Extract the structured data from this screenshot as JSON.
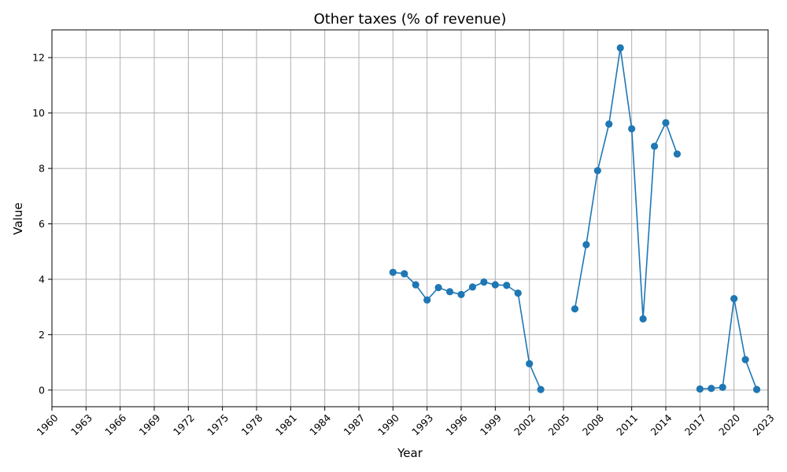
{
  "chart_data": {
    "type": "line",
    "title": "Other taxes (% of revenue)",
    "xlabel": "Year",
    "ylabel": "Value",
    "xlim": [
      1960,
      2023
    ],
    "ylim": [
      -0.6,
      13.0
    ],
    "grid": true,
    "x_ticks": [
      1960,
      1963,
      1966,
      1969,
      1972,
      1975,
      1978,
      1981,
      1984,
      1987,
      1990,
      1993,
      1996,
      1999,
      2002,
      2005,
      2008,
      2011,
      2014,
      2017,
      2020,
      2023
    ],
    "y_ticks": [
      0,
      2,
      4,
      6,
      8,
      10,
      12
    ],
    "color": "#1f77b4",
    "series": [
      {
        "points": [
          [
            1990,
            4.25
          ],
          [
            1991,
            4.2
          ],
          [
            1992,
            3.8
          ],
          [
            1993,
            3.25
          ],
          [
            1994,
            3.7
          ],
          [
            1995,
            3.55
          ],
          [
            1996,
            3.45
          ],
          [
            1997,
            3.72
          ],
          [
            1998,
            3.9
          ],
          [
            1999,
            3.8
          ],
          [
            2000,
            3.78
          ],
          [
            2001,
            3.5
          ],
          [
            2002,
            0.95
          ],
          [
            2003,
            0.02
          ],
          [
            2004,
            null
          ],
          [
            2005,
            null
          ],
          [
            2006,
            2.93
          ],
          [
            2007,
            5.25
          ],
          [
            2008,
            7.92
          ],
          [
            2009,
            9.6
          ],
          [
            2010,
            12.35
          ],
          [
            2011,
            9.43
          ],
          [
            2012,
            2.57
          ],
          [
            2013,
            8.8
          ],
          [
            2014,
            9.65
          ],
          [
            2015,
            8.52
          ],
          [
            2016,
            null
          ],
          [
            2017,
            0.04
          ],
          [
            2018,
            0.06
          ],
          [
            2019,
            0.1
          ],
          [
            2020,
            3.3
          ],
          [
            2021,
            1.1
          ],
          [
            2022,
            0.02
          ]
        ]
      }
    ]
  }
}
